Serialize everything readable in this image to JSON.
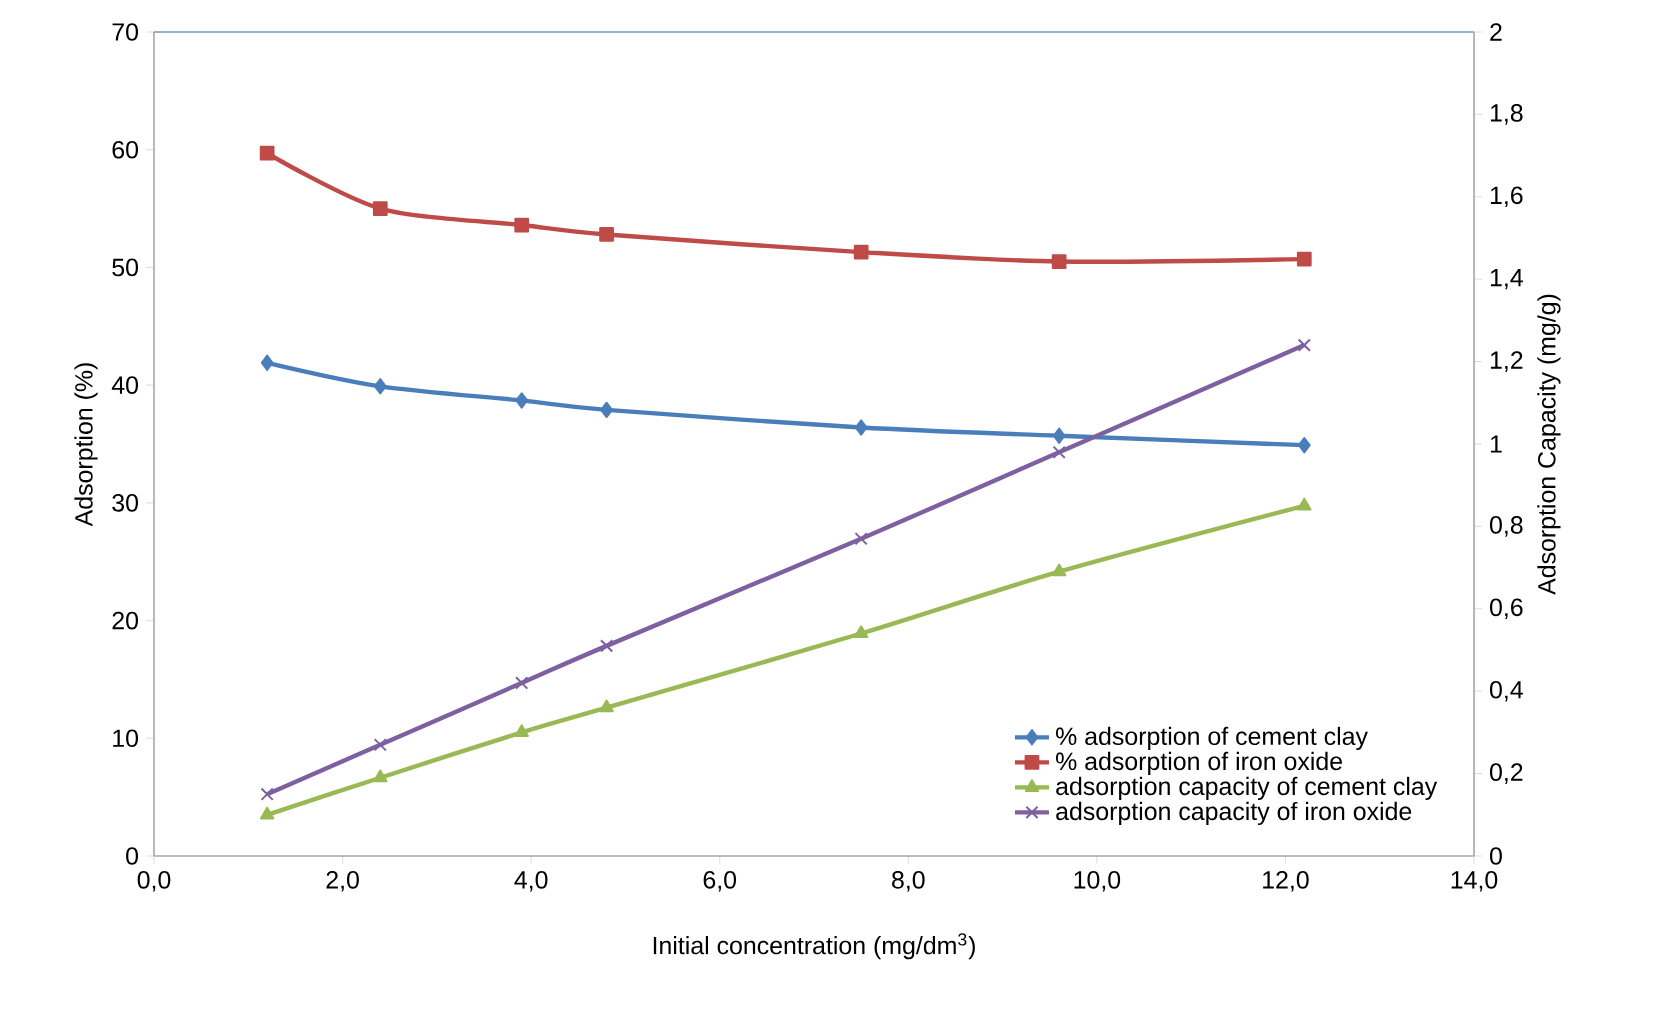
{
  "chart_data": {
    "type": "line",
    "xlabel": "Initial concentration (mg/dm$^{3}$)",
    "ylabel": "Adsorption (%)",
    "y2label": "Adsorption Capacity (mg/g)",
    "xlim": [
      0,
      14
    ],
    "xticks": [
      {
        "value": 0,
        "label": "0,0"
      },
      {
        "value": 2,
        "label": "2,0"
      },
      {
        "value": 4,
        "label": "4,0"
      },
      {
        "value": 6,
        "label": "6,0"
      },
      {
        "value": 8,
        "label": "8,0"
      },
      {
        "value": 10,
        "label": "10,0"
      },
      {
        "value": 12,
        "label": "12,0"
      },
      {
        "value": 14,
        "label": "14,0"
      }
    ],
    "ylim": [
      0,
      70
    ],
    "yticks": [
      0,
      10,
      20,
      30,
      40,
      50,
      60,
      70
    ],
    "y2lim": [
      0,
      2
    ],
    "y2ticks": [
      0,
      {
        "value": 0.2,
        "label": "0,2"
      },
      {
        "value": 0.4,
        "label": "0,4"
      },
      {
        "value": 0.6,
        "label": "0,6"
      },
      {
        "value": 0.8,
        "label": "0,8"
      },
      1,
      {
        "value": 1.2,
        "label": "1,2"
      },
      {
        "value": 1.4,
        "label": "1,4"
      },
      {
        "value": 1.6,
        "label": "1,6"
      },
      {
        "value": 1.8,
        "label": "1,8"
      },
      2
    ],
    "x": [
      1.2,
      2.4,
      3.9,
      4.8,
      7.5,
      9.6,
      12.2
    ],
    "grid": false,
    "legend": "bottom right",
    "series": [
      {
        "name": "% adsorption of cement clay",
        "color": "#4a7ebb",
        "marker": "diamond",
        "values": [
          41.9,
          39.9,
          38.7,
          37.9,
          36.4,
          35.7,
          34.9
        ]
      },
      {
        "name": "% adsorption of iron oxide",
        "color": "#be4b48",
        "marker": "square",
        "values": [
          59.7,
          55.0,
          53.6,
          52.8,
          51.3,
          50.5,
          50.7
        ]
      },
      {
        "name": "adsorption capacity of cement clay",
        "color": "#98b954",
        "marker": "triangle",
        "axis": "y2",
        "values": [
          0.1,
          0.19,
          0.3,
          0.36,
          0.54,
          0.69,
          0.85
        ]
      },
      {
        "name": "adsorption capacity of iron oxide",
        "color": "#7d60a0",
        "marker": "cross",
        "axis": "y2",
        "values": [
          0.15,
          0.27,
          0.42,
          0.51,
          0.77,
          0.98,
          1.24
        ]
      }
    ]
  }
}
